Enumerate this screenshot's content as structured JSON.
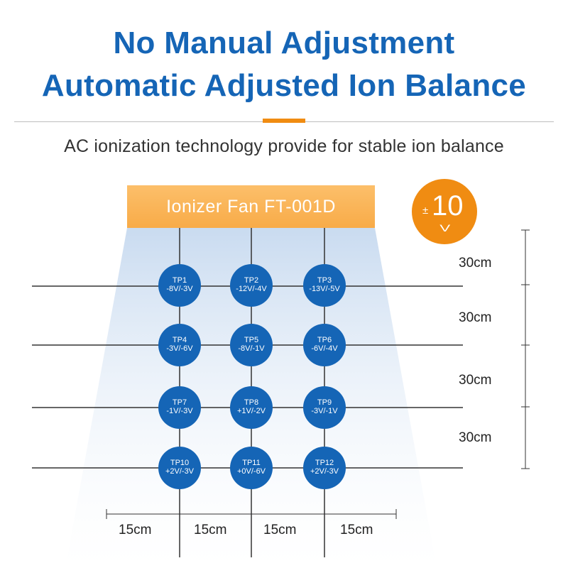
{
  "header": {
    "title_line1": "No Manual Adjustment",
    "title_line2": "Automatic Adjusted Ion Balance",
    "subtitle": "AC ionization technology provide for stable ion balance"
  },
  "fan": {
    "label": "Ionizer Fan FT-001D"
  },
  "badge": {
    "plus_minus": "±",
    "value": "10",
    "unit": "V"
  },
  "points": [
    {
      "id": "TP1",
      "value": "-8V/-3V"
    },
    {
      "id": "TP2",
      "value": "-12V/-4V"
    },
    {
      "id": "TP3",
      "value": "-13V/-5V"
    },
    {
      "id": "TP4",
      "value": "-3V/-6V"
    },
    {
      "id": "TP5",
      "value": "-8V/-1V"
    },
    {
      "id": "TP6",
      "value": "-6V/-4V"
    },
    {
      "id": "TP7",
      "value": "-1V/-3V"
    },
    {
      "id": "TP8",
      "value": "+1V/-2V"
    },
    {
      "id": "TP9",
      "value": "-3V/-1V"
    },
    {
      "id": "TP10",
      "value": "+2V/-3V"
    },
    {
      "id": "TP11",
      "value": "+0V/-6V"
    },
    {
      "id": "TP12",
      "value": "+2V/-3V"
    }
  ],
  "vertical_spacing": [
    "30cm",
    "30cm",
    "30cm",
    "30cm"
  ],
  "horizontal_spacing": [
    "15cm",
    "15cm",
    "15cm",
    "15cm"
  ],
  "colors": {
    "title": "#1565b6",
    "circle": "#1565b6",
    "fan": "#f8ab48",
    "accent": "#f08c12"
  }
}
